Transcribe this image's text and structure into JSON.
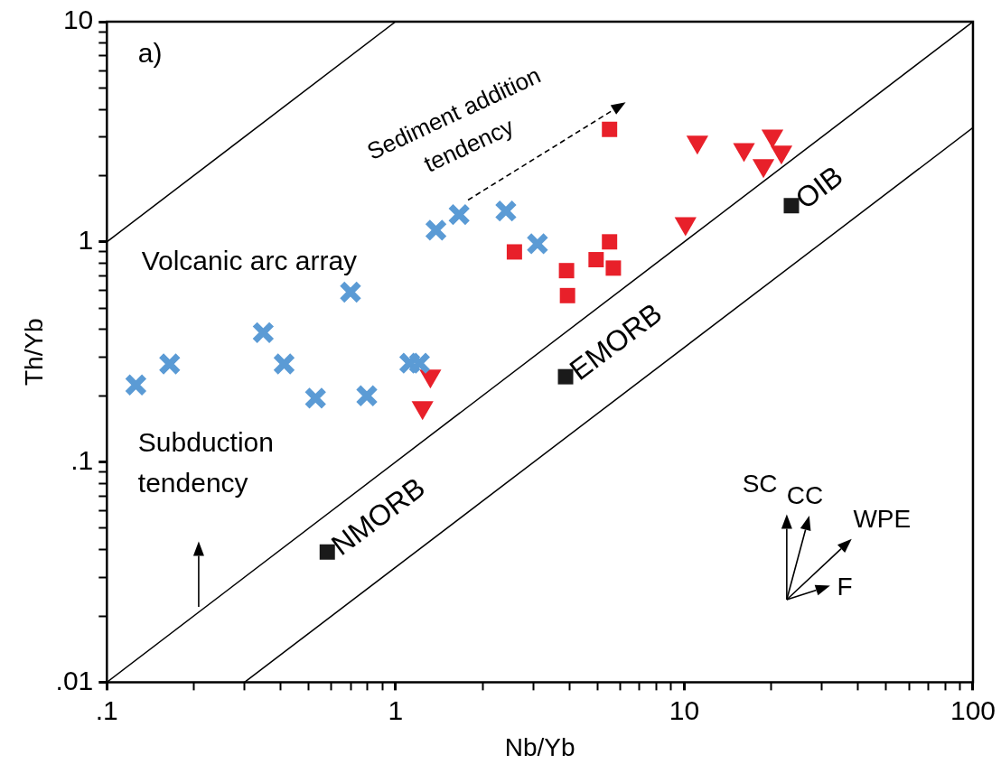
{
  "chart_data": {
    "type": "scatter",
    "xlabel": "Nb/Yb",
    "ylabel": "Th/Yb",
    "log": "xy",
    "grid": false,
    "legend": false,
    "xlim": [
      0.1,
      100
    ],
    "ylim": [
      0.01,
      10
    ],
    "xticks": [
      {
        "value": 0.1,
        "label": ".1"
      },
      {
        "value": 0.2,
        "label": null
      },
      {
        "value": 0.3,
        "label": null
      },
      {
        "value": 0.4,
        "label": null
      },
      {
        "value": 0.5,
        "label": null
      },
      {
        "value": 0.6,
        "label": null
      },
      {
        "value": 0.7,
        "label": null
      },
      {
        "value": 0.8,
        "label": null
      },
      {
        "value": 0.9,
        "label": null
      },
      1,
      {
        "value": 2,
        "label": null
      },
      {
        "value": 3,
        "label": null
      },
      {
        "value": 4,
        "label": null
      },
      {
        "value": 5,
        "label": null
      },
      {
        "value": 6,
        "label": null
      },
      {
        "value": 7,
        "label": null
      },
      {
        "value": 8,
        "label": null
      },
      {
        "value": 9,
        "label": null
      },
      10,
      {
        "value": 20,
        "label": null
      },
      {
        "value": 30,
        "label": null
      },
      {
        "value": 40,
        "label": null
      },
      {
        "value": 50,
        "label": null
      },
      {
        "value": 60,
        "label": null
      },
      {
        "value": 70,
        "label": null
      },
      {
        "value": 80,
        "label": null
      },
      {
        "value": 90,
        "label": null
      },
      100
    ],
    "yticks": [
      {
        "value": 0.01,
        "label": ".01"
      },
      {
        "value": 0.02,
        "label": null
      },
      {
        "value": 0.03,
        "label": null
      },
      {
        "value": 0.04,
        "label": null
      },
      {
        "value": 0.05,
        "label": null
      },
      {
        "value": 0.06,
        "label": null
      },
      {
        "value": 0.07,
        "label": null
      },
      {
        "value": 0.08,
        "label": null
      },
      {
        "value": 0.09,
        "label": null
      },
      {
        "value": 0.1,
        "label": ".1"
      },
      {
        "value": 0.2,
        "label": null
      },
      {
        "value": 0.3,
        "label": null
      },
      {
        "value": 0.4,
        "label": null
      },
      {
        "value": 0.5,
        "label": null
      },
      {
        "value": 0.6,
        "label": null
      },
      {
        "value": 0.7,
        "label": null
      },
      {
        "value": 0.8,
        "label": null
      },
      {
        "value": 0.9,
        "label": null
      },
      1,
      {
        "value": 2,
        "label": null
      },
      {
        "value": 3,
        "label": null
      },
      {
        "value": 4,
        "label": null
      },
      {
        "value": 5,
        "label": null
      },
      {
        "value": 6,
        "label": null
      },
      {
        "value": 7,
        "label": null
      },
      {
        "value": 8,
        "label": null
      },
      {
        "value": 9,
        "label": null
      },
      10
    ],
    "series": [
      {
        "type": "line",
        "color": "#000000",
        "marker": "none",
        "x": [
          0.1,
          1
        ],
        "values": [
          1,
          10
        ]
      },
      {
        "type": "line",
        "color": "#000000",
        "marker": "none",
        "x": [
          0.1,
          100
        ],
        "values": [
          0.01,
          10
        ]
      },
      {
        "type": "line",
        "color": "#000000",
        "marker": "none",
        "x": [
          0.3,
          100
        ],
        "values": [
          0.01,
          3.3
        ]
      },
      {
        "type": "scatter",
        "color": "#5b9bd5",
        "marker": "cross",
        "x": [
          0.126,
          0.165,
          0.348,
          0.411,
          0.528,
          0.698,
          0.795,
          1.12,
          1.21,
          1.38,
          1.66,
          2.41,
          3.1
        ],
        "values": [
          0.224,
          0.279,
          0.387,
          0.279,
          0.195,
          0.591,
          0.2,
          0.281,
          0.281,
          1.13,
          1.33,
          1.38,
          0.98
        ]
      },
      {
        "type": "scatter",
        "color": "#e8202a",
        "marker": "square",
        "x": [
          5.51,
          2.58,
          3.91,
          3.94,
          4.95,
          5.51,
          5.68
        ],
        "values": [
          3.24,
          0.9,
          0.74,
          0.57,
          0.83,
          1.0,
          0.76
        ]
      },
      {
        "type": "scatter",
        "color": "#e8202a",
        "marker": "triangle",
        "x": [
          11.1,
          16.1,
          20.2,
          21.7,
          18.8,
          10.1,
          1.32,
          1.24
        ],
        "values": [
          2.84,
          2.63,
          3.03,
          2.56,
          2.22,
          1.21,
          0.246,
          0.177
        ]
      },
      {
        "type": "scatter",
        "color": "#1a1a1a",
        "marker": "square",
        "x": [
          0.58,
          3.88,
          23.5
        ],
        "values": [
          0.039,
          0.244,
          1.46
        ]
      }
    ],
    "annotations": [
      {
        "text": "NMORB",
        "x": 0.58,
        "y": 0.039
      },
      {
        "text": "EMORB",
        "x": 3.88,
        "y": 0.244
      },
      {
        "text": "OIB",
        "x": 23.5,
        "y": 1.46
      },
      "a)",
      "Volcanic arc array",
      "Sediment addition tendency",
      "Subduction tendency",
      "SC",
      "CC",
      "WPE",
      "F"
    ]
  }
}
